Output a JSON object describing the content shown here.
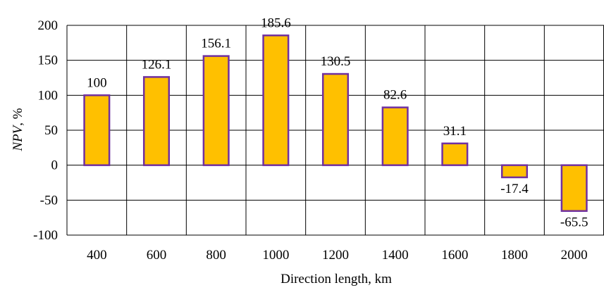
{
  "chart_data": {
    "type": "bar",
    "categories": [
      "400",
      "600",
      "800",
      "1000",
      "1200",
      "1400",
      "1600",
      "1800",
      "2000"
    ],
    "values": [
      100,
      126.1,
      156.1,
      185.6,
      130.5,
      82.6,
      31.1,
      -17.4,
      -65.5
    ],
    "data_labels": [
      "100",
      "126.1",
      "156.1",
      "185.6",
      "130.5",
      "82.6",
      "31.1",
      "-17.4",
      "-65.5"
    ],
    "xlabel": "Direction length, km",
    "ylabel_main": "NPV",
    "ylabel_unit": ", %",
    "ylim": [
      -100,
      200
    ],
    "yticks": [
      -100,
      -50,
      0,
      50,
      100,
      150,
      200
    ],
    "grid": true,
    "legend": "none",
    "colors": {
      "bar_fill": "#FFC000",
      "bar_stroke": "#7030A0",
      "grid": "#000000"
    }
  }
}
